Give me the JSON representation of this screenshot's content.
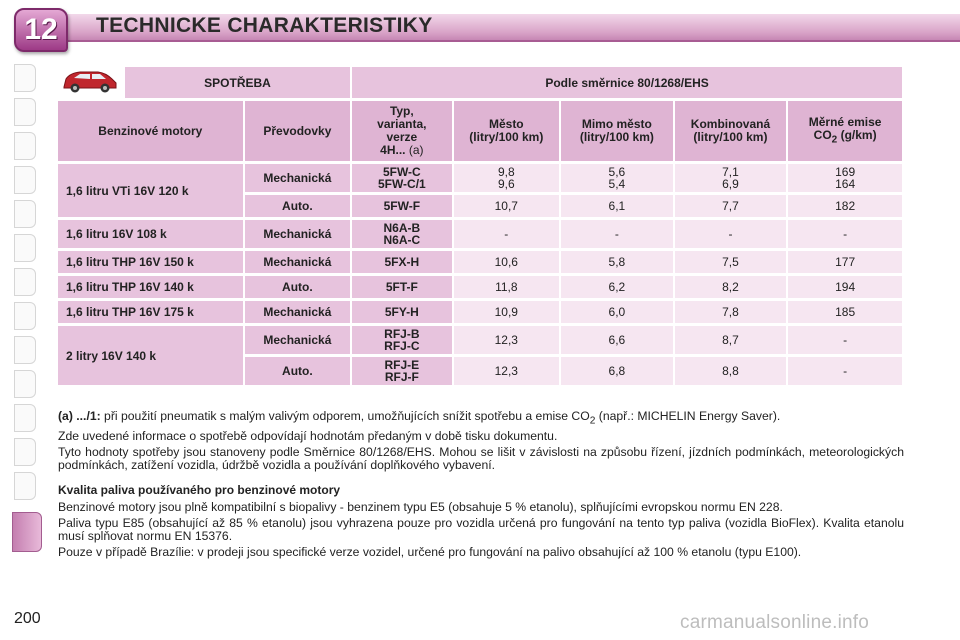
{
  "header": {
    "chapter_number": "12",
    "title": "TECHNICKE CHARAKTERISTIKY"
  },
  "table": {
    "top_headers": [
      "SPOTŘEBA",
      "Podle směrnice 80/1268/EHS"
    ],
    "columns": {
      "engine": "Benzinové motory",
      "gearbox": "Převodovky",
      "type_line1": "Typ,",
      "type_line2": "varianta,",
      "type_line3": "verze",
      "type_line4": "4H...",
      "type_line4_note": "(a)",
      "city_line1": "Město",
      "city_line2": "(litry/100 km)",
      "extra_line1": "Mimo město",
      "extra_line2": "(litry/100 km)",
      "comb_line1": "Kombinovaná",
      "comb_line2": "(litry/100 km)",
      "co2_line1": "Měrné emise",
      "co2_line2a": "CO",
      "co2_line2sub": "2",
      "co2_line2b": " (g/km)"
    },
    "rows": [
      {
        "engine": "1,6 litru VTi 16V 120 k",
        "gearbox": "Mechanická",
        "type1": "5FW-C",
        "type2": "5FW-C/1",
        "city1": "9,8",
        "city2": "9,6",
        "extra1": "5,6",
        "extra2": "5,4",
        "comb1": "7,1",
        "comb2": "6,9",
        "co21": "169",
        "co22": "164"
      },
      {
        "engine": "",
        "gearbox": "Auto.",
        "type1": "5FW-F",
        "type2": "",
        "city1": "10,7",
        "city2": "",
        "extra1": "6,1",
        "extra2": "",
        "comb1": "7,7",
        "comb2": "",
        "co21": "182",
        "co22": ""
      },
      {
        "engine": "1,6 litru 16V 108 k",
        "gearbox": "Mechanická",
        "type1": "N6A-B",
        "type2": "N6A-C",
        "city1": "-",
        "city2": "",
        "extra1": "-",
        "extra2": "",
        "comb1": "-",
        "comb2": "",
        "co21": "-",
        "co22": ""
      },
      {
        "engine": "1,6 litru THP 16V 150 k",
        "gearbox": "Mechanická",
        "type1": "5FX-H",
        "type2": "",
        "city1": "10,6",
        "city2": "",
        "extra1": "5,8",
        "extra2": "",
        "comb1": "7,5",
        "comb2": "",
        "co21": "177",
        "co22": ""
      },
      {
        "engine": "1,6 litru THP 16V 140 k",
        "gearbox": "Auto.",
        "type1": "5FT-F",
        "type2": "",
        "city1": "11,8",
        "city2": "",
        "extra1": "6,2",
        "extra2": "",
        "comb1": "8,2",
        "comb2": "",
        "co21": "194",
        "co22": ""
      },
      {
        "engine": "1,6 litru THP 16V 175 k",
        "gearbox": "Mechanická",
        "type1": "5FY-H",
        "type2": "",
        "city1": "10,9",
        "city2": "",
        "extra1": "6,0",
        "extra2": "",
        "comb1": "7,8",
        "comb2": "",
        "co21": "185",
        "co22": ""
      },
      {
        "engine": "2 litry 16V 140 k",
        "gearbox": "Mechanická",
        "type1": "RFJ-B",
        "type2": "RFJ-C",
        "city1": "12,3",
        "city2": "",
        "extra1": "6,6",
        "extra2": "",
        "comb1": "8,7",
        "comb2": "",
        "co21": "-",
        "co22": ""
      },
      {
        "engine": "",
        "gearbox": "Auto.",
        "type1": "RFJ-E",
        "type2": "RFJ-F",
        "city1": "12,3",
        "city2": "",
        "extra1": "6,8",
        "extra2": "",
        "comb1": "8,8",
        "comb2": "",
        "co21": "-",
        "co22": ""
      }
    ]
  },
  "notes": {
    "footnote_label": "(a) .../1:",
    "footnote_text_a": " při použití pneumatik s malým valivým odporem, umožňujících snížit spotřebu a emise CO",
    "footnote_sub": "2",
    "footnote_text_b": " (např.: MICHELIN Energy Saver).",
    "p2": "Zde uvedené informace o spotřebě odpovídají hodnotám předaným v době tisku dokumentu.",
    "p3": "Tyto hodnoty spotřeby jsou stanoveny podle Směrnice 80/1268/EHS. Mohou se lišit v závislosti na způsobu řízení, jízdních podmínkách, meteorologických podmínkách, zatížení vozidla, údržbě vozidla a používání doplňkového vybavení.",
    "heading": "Kvalita paliva používaného pro benzinové motory",
    "p4": "Benzinové motory jsou plně kompatibilní s biopalivy - benzinem typu E5 (obsahuje 5 % etanolu), splňujícími evropskou normu EN 228.",
    "p5": "Paliva typu E85 (obsahující až 85 % etanolu) jsou vyhrazena pouze pro vozidla určená pro fungování na tento typ paliva (vozidla BioFlex). Kvalita etanolu musí splňovat normu EN 15376.",
    "p6": "Pouze v případě Brazílie: v prodeji jsou specifické verze vozidel, určené pro fungování na palivo obsahující až 100 % etanolu (typu E100)."
  },
  "footer": {
    "page_number": "200",
    "watermark": "carmanualsonline.info"
  }
}
